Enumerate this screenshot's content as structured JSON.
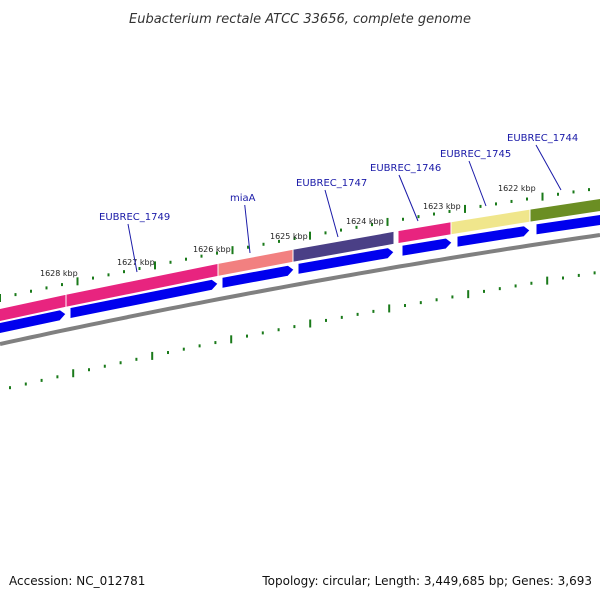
{
  "title": "Eubacterium rectale ATCC 33656, complete genome",
  "footer": {
    "accession": "Accession: NC_012781",
    "topology": "Topology: circular; Length: 3,449,685 bp; Genes: 3,693"
  },
  "kbp_labels": [
    "1628 kbp",
    "1627 kbp",
    "1626 kbp",
    "1625 kbp",
    "1624 kbp",
    "1623 kbp",
    "1622 kbp"
  ],
  "gene_labels": [
    "EUBREC_1749",
    "miaA",
    "EUBREC_1747",
    "EUBREC_1746",
    "EUBREC_1745",
    "EUBREC_1744"
  ],
  "colors": {
    "forward_strand": "#0000ee",
    "backbone": "#808080",
    "ticks": "#1a7a1a",
    "label_text": "#1a1aa8",
    "segments": [
      "#e8247f",
      "#e8247f",
      "#f28080",
      "#4a3f86",
      "#e8247f",
      "#f0e68c",
      "#6b8e23"
    ]
  }
}
